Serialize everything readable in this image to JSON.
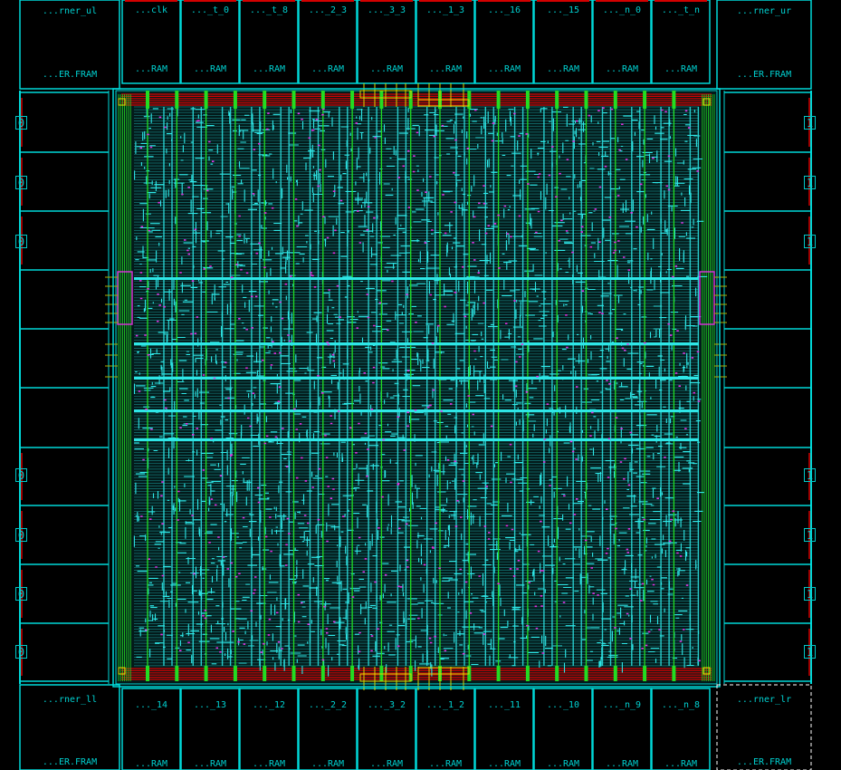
{
  "corners": {
    "ul": {
      "name": "...rner_ul",
      "sub": "...ER.FRAM"
    },
    "ur": {
      "name": "...rner_ur",
      "sub": "...ER.FRAM"
    },
    "ll": {
      "name": "...rner_ll",
      "sub": "...ER.FRAM"
    },
    "lr": {
      "name": "...rner_lr",
      "sub": "...ER.FRAM"
    }
  },
  "top_pads": [
    {
      "name": "...clk",
      "sub": "...RAM"
    },
    {
      "name": "..._t_0",
      "sub": "...RAM"
    },
    {
      "name": "..._t_8",
      "sub": "...RAM"
    },
    {
      "name": "..._2_3",
      "sub": "...RAM"
    },
    {
      "name": "..._3_3",
      "sub": "...RAM"
    },
    {
      "name": "..._1_3",
      "sub": "...RAM"
    },
    {
      "name": "..._16",
      "sub": "...RAM"
    },
    {
      "name": "..._15",
      "sub": "...RAM"
    },
    {
      "name": "..._n_0",
      "sub": "...RAM"
    },
    {
      "name": "..._t_n",
      "sub": "...RAM"
    }
  ],
  "bottom_pads": [
    {
      "name": "..._14",
      "sub": "...RAM"
    },
    {
      "name": "..._13",
      "sub": "...RAM"
    },
    {
      "name": "..._12",
      "sub": "...RAM"
    },
    {
      "name": "..._2_2",
      "sub": "...RAM"
    },
    {
      "name": "..._3_2",
      "sub": "...RAM"
    },
    {
      "name": "..._1_2",
      "sub": "...RAM"
    },
    {
      "name": "..._11",
      "sub": "...RAM"
    },
    {
      "name": "..._10",
      "sub": "...RAM"
    },
    {
      "name": "..._n_9",
      "sub": "...RAM"
    },
    {
      "name": "..._n_8",
      "sub": "...RAM"
    }
  ],
  "left_pin_labels": [
    "0",
    "0",
    "0",
    "0",
    "0",
    "0",
    "0"
  ],
  "right_pin_labels": [
    "1",
    "1",
    "1",
    "1",
    "1",
    "1",
    "1"
  ],
  "colors": {
    "background": "#000000",
    "pad_outline": "#00d8d8",
    "pad_text": "#00d0d0",
    "power_ring": "#d40000",
    "grid_green": "#22dd22",
    "route_cyan": "#2ee6e6",
    "via_magenta": "#e030e0",
    "selection": "#ffffff"
  }
}
